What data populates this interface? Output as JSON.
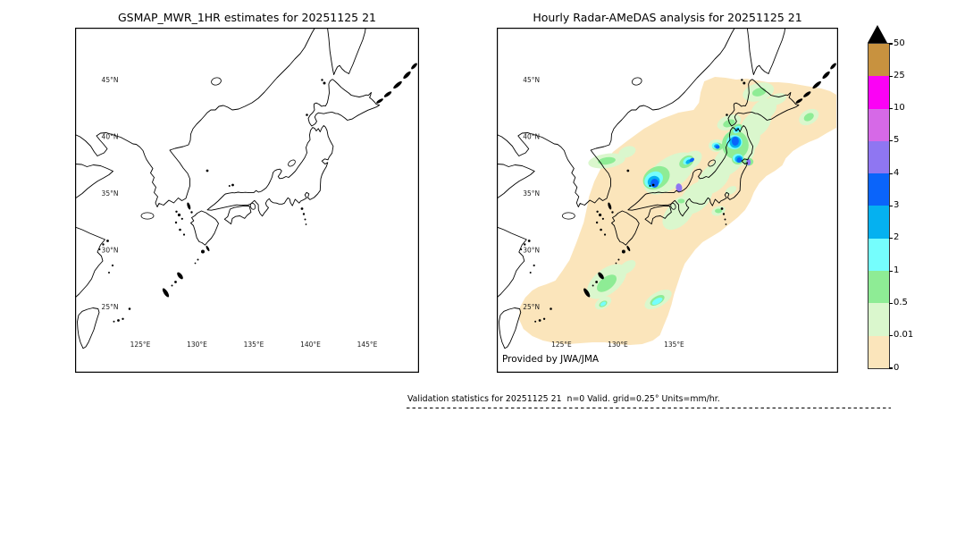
{
  "panels": {
    "left": {
      "title": "GSMAP_MWR_1HR estimates for 20251125 21",
      "lat_labels": [
        "45°N",
        "40°N",
        "35°N",
        "30°N",
        "25°N"
      ],
      "lon_labels": [
        "125°E",
        "130°E",
        "135°E",
        "140°E",
        "145°E"
      ]
    },
    "right": {
      "title": "Hourly Radar-AMeDAS analysis for 20251125 21",
      "lat_labels": [
        "45°N",
        "40°N",
        "35°N",
        "30°N",
        "25°N"
      ],
      "lon_labels": [
        "125°E",
        "130°E",
        "135°E"
      ],
      "credit": "Provided by JWA/JMA"
    }
  },
  "palette": {
    "0": "#fbe5bb",
    "0.01": "#daf7cd",
    "0.5": "#8eec95",
    "1": "#75fefd",
    "2": "#05b1f0",
    "3": "#0a64fa",
    "4": "#8f76f2",
    "5": "#d669e7",
    "10": "#fb02f5",
    "25": "#c8923f",
    "overflow": "#000000"
  },
  "colorbar": {
    "levels_top_to_bottom": [
      "25",
      "10",
      "5",
      "4",
      "3",
      "2",
      "1",
      "0.5",
      "0.01",
      "0"
    ],
    "tick_labels": [
      "50",
      "25",
      "10",
      "5",
      "4",
      "3",
      "2",
      "1",
      "0.5",
      "0.01",
      "0"
    ],
    "units": "mm/hr"
  },
  "footer": {
    "caption": "Validation statistics for 20251125 21  n=0 Valid. grid=0.25° Units=mm/hr."
  },
  "chart_data": {
    "type": "heatmap",
    "subtype": "precipitation validation map pair",
    "datetime": "20251125 21",
    "units": "mm/hr",
    "grid_resolution_deg": 0.25,
    "n_valid_points": 0,
    "map_extent": {
      "lon_min": 119.3,
      "lon_max": 149.6,
      "lat_min": 19.7,
      "lat_max": 50.1
    },
    "lon_gridlines_deg_e": [
      125,
      130,
      135,
      140,
      145
    ],
    "lat_gridlines_deg_n": [
      25,
      30,
      35,
      40,
      45
    ],
    "colorbar_levels_mm_hr": [
      0,
      0.01,
      0.5,
      1,
      2,
      3,
      4,
      5,
      10,
      25,
      50
    ],
    "panels": [
      {
        "title": "GSMAP_MWR_1HR estimates for 20251125 21",
        "content": "empty field - no precipitation estimates plotted, coastlines and graticule only"
      },
      {
        "title": "Hourly Radar-AMeDAS analysis for 20251125 21",
        "content": "0.01-0.5 mm/hr band stretching SW-NE from ~(123E,24N) over the Ryukyu Islands, Kyushu, Honshu and Hokkaido to ~(149.5E,44N); embedded 0.5-1 mm/hr patches over Tohoku, Hokkaido, Chugoku and near Okinawa; cells of 1-4 mm/hr along the Japan Sea coast of central Honshu (~137E,37N) and over northern Sanriku (~141E,38-40N); isolated 4-5 mm/hr pixels near (136.8E,36N) and (141.6E,38.2N)"
      }
    ],
    "legend_position": "right",
    "grid": true
  }
}
